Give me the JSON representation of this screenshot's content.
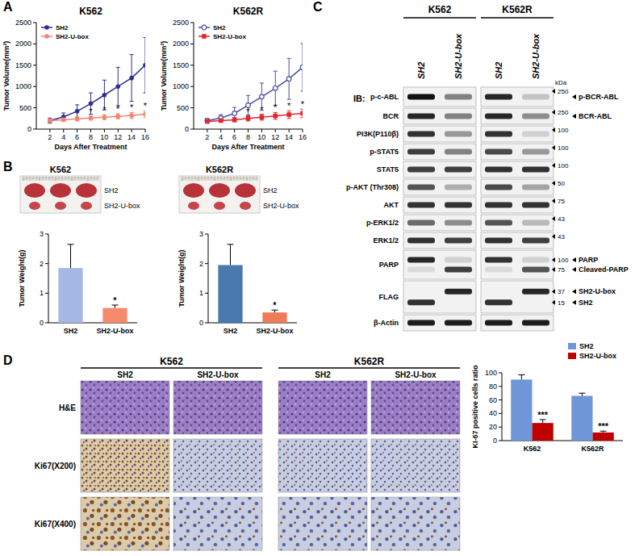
{
  "panel_labels": [
    "A",
    "B",
    "C",
    "D"
  ],
  "chart_data": [
    {
      "type": "line",
      "title": "K562",
      "x": [
        2,
        4,
        6,
        8,
        10,
        12,
        14,
        16
      ],
      "xlim": [
        0,
        16
      ],
      "xticks": [
        2,
        4,
        6,
        8,
        10,
        12,
        14,
        16
      ],
      "ylim": [
        0,
        2500
      ],
      "yticks": [
        0,
        500,
        1000,
        1500,
        2000,
        2500
      ],
      "x_label": "Days After Treatment",
      "y_label": "Tumor Volume(mm³)",
      "legend": "top-left",
      "series": [
        {
          "name": "SH2",
          "color": "#2b2f8f",
          "marker": "circle",
          "values": [
            200,
            290,
            420,
            600,
            800,
            1000,
            1200,
            1500
          ],
          "errors": [
            60,
            90,
            150,
            250,
            350,
            450,
            550,
            650
          ]
        },
        {
          "name": "SH2-U-box",
          "color": "#f4846c",
          "marker": "circle",
          "values": [
            200,
            220,
            240,
            260,
            280,
            300,
            320,
            350
          ],
          "errors": [
            40,
            40,
            50,
            50,
            60,
            60,
            70,
            80
          ]
        }
      ],
      "significance": {
        "x": [
          8,
          10,
          12,
          14,
          16
        ],
        "label": "*"
      }
    },
    {
      "type": "line",
      "title": "K562R",
      "x": [
        2,
        4,
        6,
        8,
        10,
        12,
        14,
        16
      ],
      "xlim": [
        0,
        16
      ],
      "xticks": [
        2,
        4,
        6,
        8,
        10,
        12,
        14,
        16
      ],
      "ylim": [
        0,
        2500
      ],
      "yticks": [
        0,
        500,
        1000,
        1500,
        2000,
        2500
      ],
      "x_label": "Days After Treatment",
      "y_label": "Tumor Volume(mm³)",
      "legend": "top-left",
      "series": [
        {
          "name": "SH2",
          "color": "#4b4f9e",
          "marker": "open-circle",
          "values": [
            200,
            260,
            370,
            560,
            760,
            960,
            1180,
            1450
          ],
          "errors": [
            50,
            80,
            140,
            230,
            320,
            400,
            480,
            560
          ]
        },
        {
          "name": "SH2-U-box",
          "color": "#e3262e",
          "marker": "square",
          "values": [
            180,
            200,
            220,
            250,
            280,
            310,
            340,
            370
          ],
          "errors": [
            30,
            40,
            50,
            60,
            70,
            80,
            90,
            100
          ]
        }
      ],
      "significance": {
        "x": [
          8,
          10,
          12,
          14,
          16
        ],
        "label": "*"
      }
    },
    {
      "type": "bar",
      "categories": [
        "SH2",
        "SH2-U-box"
      ],
      "values": [
        1.85,
        0.5
      ],
      "errors": [
        0.8,
        0.1
      ],
      "colors": [
        "#a4b8e4",
        "#f4896b"
      ],
      "ylim": [
        0,
        3
      ],
      "yticks": [
        0,
        1,
        2,
        3
      ],
      "y_label": "Tumor Weight(g)",
      "significance": {
        "index": [
          1
        ],
        "label": "*"
      }
    },
    {
      "type": "bar",
      "categories": [
        "SH2",
        "SH2-U-box"
      ],
      "values": [
        1.95,
        0.35
      ],
      "errors": [
        0.7,
        0.08
      ],
      "colors": [
        "#4a79b0",
        "#ef7b57"
      ],
      "ylim": [
        0,
        3
      ],
      "yticks": [
        0,
        1,
        2,
        3
      ],
      "y_label": "Tumor Weight(g)",
      "significance": {
        "index": [
          1
        ],
        "label": "*"
      }
    },
    {
      "type": "bar",
      "categories": [
        "K562",
        "K562R"
      ],
      "series": [
        {
          "name": "SH2",
          "color": "#6f96d8",
          "values": [
            90,
            66
          ],
          "errors": [
            7,
            4
          ]
        },
        {
          "name": "SH2-U-box",
          "color": "#c00000",
          "values": [
            26,
            12
          ],
          "errors": [
            5,
            2
          ]
        }
      ],
      "ylim": [
        0,
        100
      ],
      "yticks": [
        0,
        20,
        40,
        60,
        80,
        100
      ],
      "y_label": "KI-67 positive cells ratio",
      "legend": "top-right",
      "significance": {
        "series": 1,
        "index": [
          0,
          1
        ],
        "label": "***"
      }
    }
  ],
  "tumor_photos": [
    {
      "title": "K562",
      "labels": [
        "SH2",
        "SH2-U-box"
      ]
    },
    {
      "title": "K562R",
      "labels": [
        "SH2",
        "SH2-U-box"
      ]
    }
  ],
  "blot": {
    "groups": [
      "K562",
      "K562R"
    ],
    "lanes": [
      "SH2",
      "SH2-U-box",
      "SH2",
      "SH2-U-box"
    ],
    "ib_label": "IB:",
    "kda_label": "kDa",
    "rows": [
      {
        "label": "p-c-ABL",
        "markers": [
          250
        ],
        "annotations": [
          "p-BCR-ABL"
        ],
        "bands": [
          [
            1,
            0.5,
            0.9,
            0.2
          ]
        ]
      },
      {
        "label": "BCR",
        "markers": [
          250
        ],
        "annotations": [
          "BCR-ABL"
        ],
        "bands": [
          [
            0.9,
            0.5,
            0.9,
            0.45
          ]
        ]
      },
      {
        "label": "PI3K(P110β)",
        "markers": [
          100
        ],
        "annotations": [],
        "bands": [
          [
            0.85,
            0.4,
            0.85,
            0.15
          ]
        ]
      },
      {
        "label": "p-STAT5",
        "markers": [
          100
        ],
        "annotations": [],
        "bands": [
          [
            0.8,
            0.5,
            0.75,
            0.4
          ]
        ]
      },
      {
        "label": "STAT5",
        "markers": [
          100
        ],
        "annotations": [],
        "bands": [
          [
            0.8,
            0.8,
            0.85,
            0.85
          ]
        ]
      },
      {
        "label": "p-AKT (Thr308)",
        "markers": [
          50
        ],
        "annotations": [],
        "bands": [
          [
            0.7,
            0.3,
            0.75,
            0.35
          ]
        ]
      },
      {
        "label": "AKT",
        "markers": [
          75
        ],
        "annotations": [],
        "bands": [
          [
            0.85,
            0.85,
            0.85,
            0.85
          ]
        ]
      },
      {
        "label": "p-ERK1/2",
        "markers": [
          43
        ],
        "annotations": [],
        "bands": [
          [
            0.6,
            0.45,
            0.7,
            0.25
          ]
        ]
      },
      {
        "label": "ERK1/2",
        "markers": [
          43
        ],
        "annotations": [],
        "bands": [
          [
            0.85,
            0.8,
            0.85,
            0.8
          ]
        ]
      },
      {
        "label": "PARP",
        "markers": [
          100,
          75
        ],
        "annotations": [
          "PARP",
          "Cleaved-PARP"
        ],
        "bands": [
          [
            0.9,
            0.15,
            0.85,
            0.15
          ],
          [
            0.1,
            0.8,
            0.1,
            0.7
          ]
        ]
      },
      {
        "label": "FLAG",
        "markers": [
          37,
          15
        ],
        "annotations": [
          "SH2-U-box",
          "SH2"
        ],
        "bands": [
          [
            0,
            0.9,
            0,
            0.9
          ],
          [
            0.85,
            0,
            0.85,
            0
          ]
        ]
      },
      {
        "label": "β-Actin",
        "markers": [],
        "annotations": [],
        "bands": [
          [
            0.95,
            0.95,
            0.95,
            0.95
          ]
        ]
      }
    ]
  },
  "histology": {
    "groups": [
      "K562",
      "K562R"
    ],
    "columns": [
      "SH2",
      "SH2-U-box",
      "SH2",
      "SH2-U-box"
    ],
    "rows": [
      "H&E",
      "Ki67(X200)",
      "Ki67(X400)"
    ]
  }
}
